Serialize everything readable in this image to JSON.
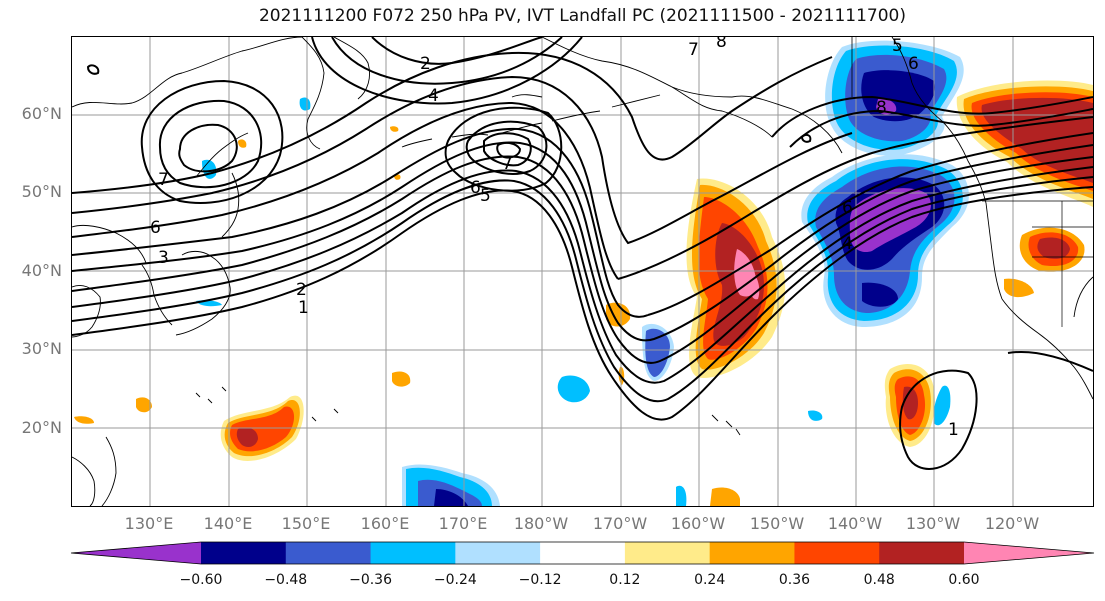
{
  "title": "2021111200 F072 250 hPa PV, IVT Landfall PC (2021111500 - 2021111700)",
  "lat_labels": [
    "60°N",
    "50°N",
    "40°N",
    "30°N",
    "20°N"
  ],
  "lon_labels": [
    "130°E",
    "140°E",
    "150°E",
    "160°E",
    "170°E",
    "180°W",
    "170°W",
    "160°W",
    "150°W",
    "140°W",
    "130°W",
    "120°W"
  ],
  "colorbar": {
    "colors": [
      "#9932cc",
      "#00008b",
      "#3a5bcf",
      "#00bfff",
      "#b0e0ff",
      "#ffffff",
      "#ffeb8a",
      "#ffa500",
      "#ff4500",
      "#b22222",
      "#ff85b3"
    ],
    "tick_labels": [
      "−0.60",
      "−0.48",
      "−0.36",
      "−0.24",
      "−0.12",
      "0.12",
      "0.24",
      "0.36",
      "0.48",
      "0.60"
    ]
  },
  "contour_labels": [
    "2",
    "4",
    "6",
    "7",
    "8",
    "5",
    "6",
    "7",
    "1",
    "2",
    "3",
    "5",
    "7",
    "6",
    "8",
    "6",
    "4",
    "1"
  ]
}
